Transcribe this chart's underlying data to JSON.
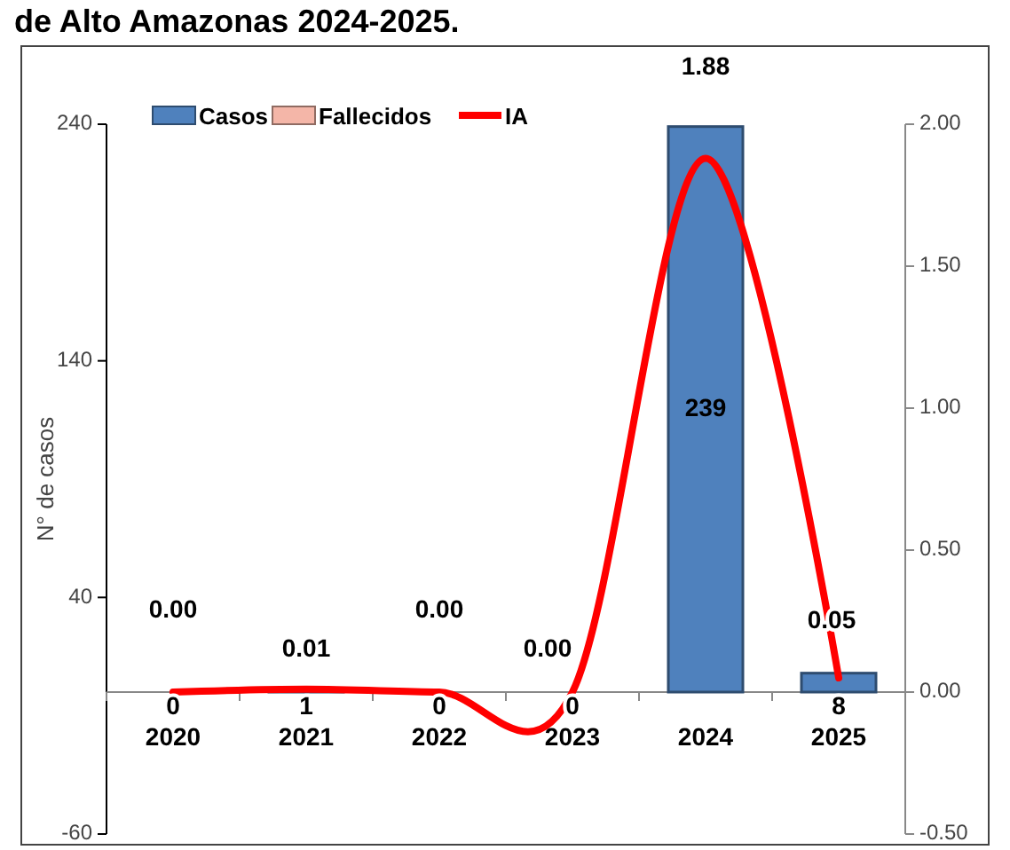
{
  "chart_data": {
    "type": "bar",
    "title": "de Alto Amazonas 2024-2025.",
    "ylabel": "N° de casos",
    "categories": [
      "2020",
      "2021",
      "2022",
      "2023",
      "2024",
      "2025"
    ],
    "series": [
      {
        "name": "Casos",
        "color": "#4f81bd",
        "values": [
          0,
          1,
          0,
          0,
          239,
          8
        ],
        "value_labels": [
          "0",
          "1",
          "0",
          "0",
          "239",
          "8"
        ]
      },
      {
        "name": "Fallecidos",
        "color": "#f4b6a8",
        "values": [
          0,
          0,
          0,
          0,
          0,
          0
        ]
      },
      {
        "name": "IA",
        "type": "line",
        "axis": "y2",
        "color": "#ff0000",
        "values": [
          0.0,
          0.01,
          0.0,
          0.0,
          1.88,
          0.05
        ],
        "value_labels": [
          "0.00",
          "0.01",
          "0.00",
          "0.00",
          "1.88",
          "0.05"
        ]
      }
    ],
    "ylim": [
      -60,
      240
    ],
    "yticks": [
      -60,
      40,
      140,
      240
    ],
    "y2lim": [
      -0.5,
      2.0
    ],
    "y2ticks": [
      {
        "value": -0.5,
        "label": "-0.50"
      },
      {
        "value": 0,
        "label": "0.00"
      },
      {
        "value": 0.5,
        "label": "0.50"
      },
      {
        "value": 1,
        "label": "1.00"
      },
      {
        "value": 1.5,
        "label": "1.50"
      },
      {
        "value": 2,
        "label": "2.00"
      }
    ],
    "legend": "top left",
    "grid": false
  }
}
